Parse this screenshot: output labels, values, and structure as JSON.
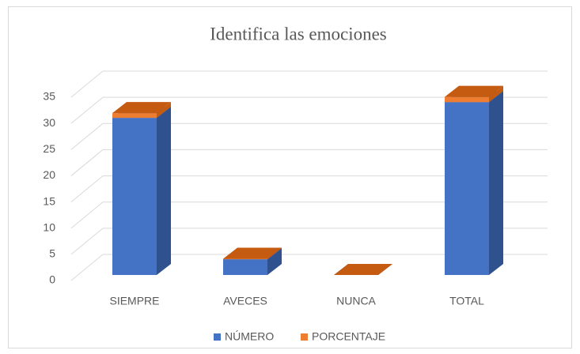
{
  "chart_data": {
    "type": "bar3d_stacked",
    "title": "Identifica las emociones",
    "categories": [
      "SIEMPRE",
      "AVECES",
      "NUNCA",
      "TOTAL"
    ],
    "series": [
      {
        "name": "NÚMERO",
        "color": "#4472c4",
        "side": "#2f528f",
        "top": "#3a62ad",
        "values": [
          30,
          3,
          0,
          33
        ]
      },
      {
        "name": "PORCENTAJE",
        "color": "#ed7d31",
        "side": "#c55a11",
        "top": "#c55a11",
        "values": [
          0.91,
          0.09,
          0,
          1
        ]
      }
    ],
    "ylim": [
      0,
      35
    ],
    "yticks": [
      0,
      5,
      10,
      15,
      20,
      25,
      30,
      35
    ],
    "grid": true,
    "legend": "bottom"
  }
}
